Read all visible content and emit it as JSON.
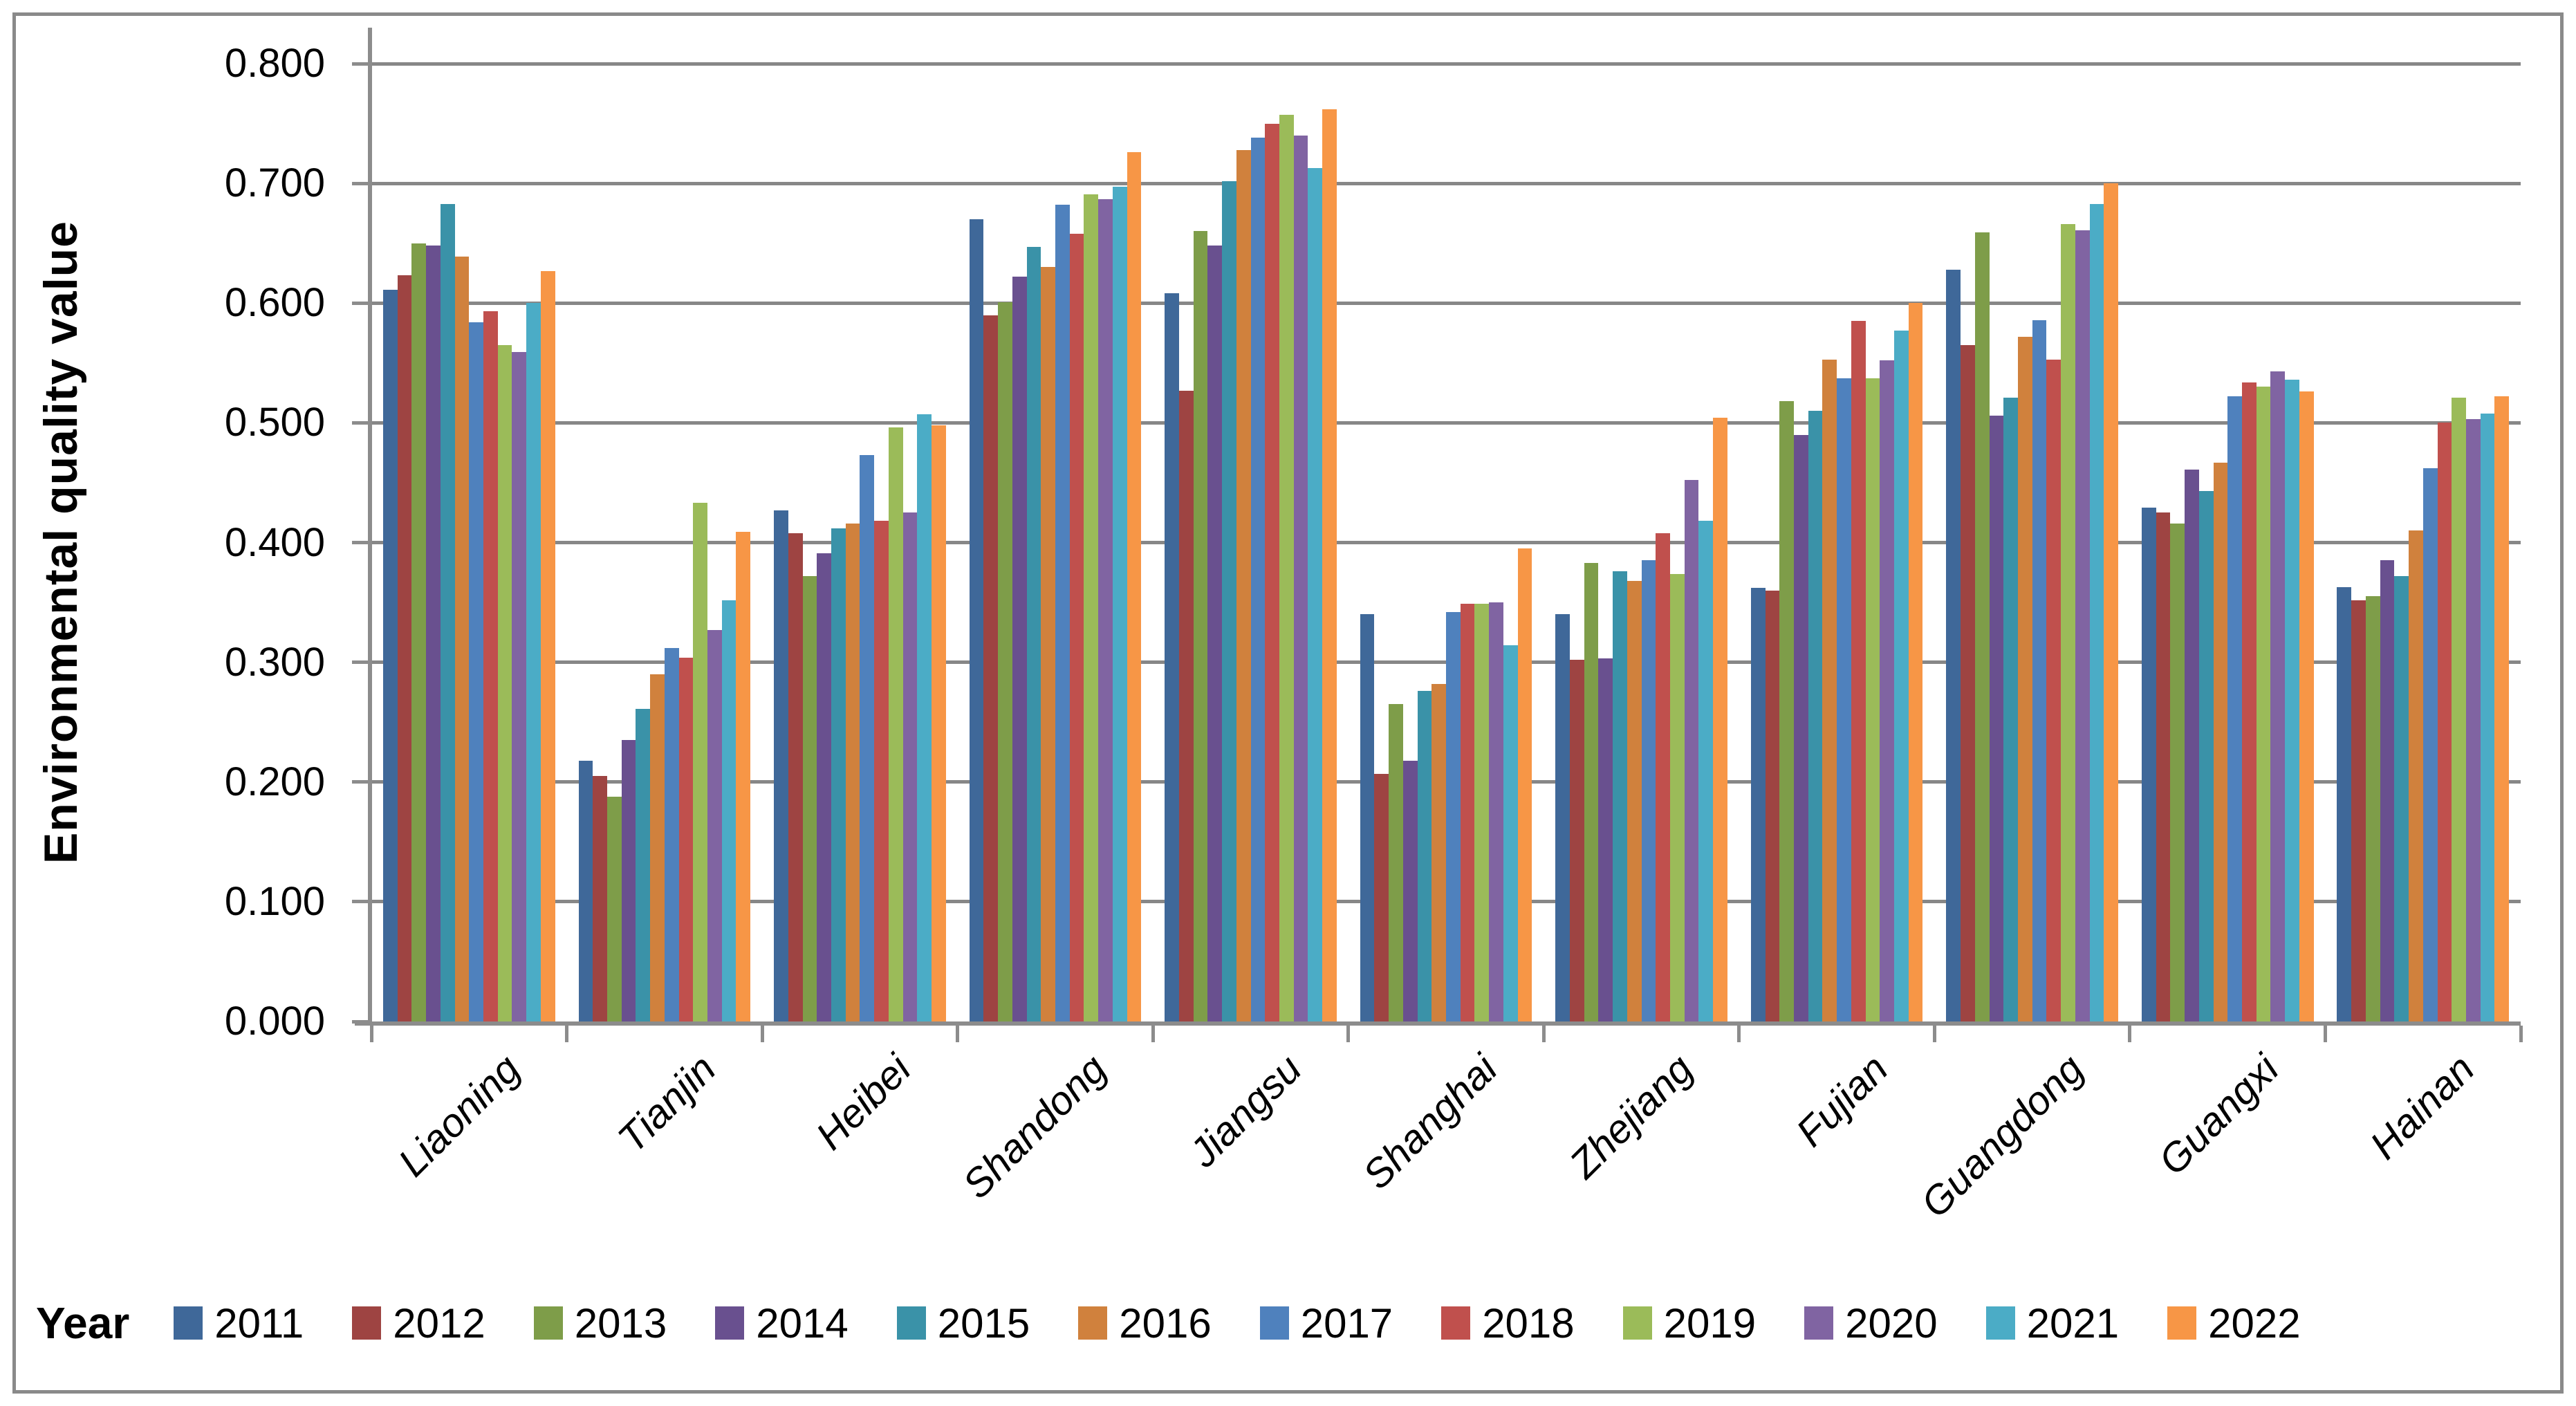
{
  "chart_data": {
    "type": "bar",
    "title": "",
    "ylabel": "Environmental quality value",
    "xlabel": "",
    "legend_title": "Year",
    "legend_position": "bottom",
    "grid": true,
    "ylim": [
      0,
      0.8
    ],
    "y_tick_step": 0.1,
    "y_tick_labels": [
      "0.800",
      "0.700",
      "0.600",
      "0.500",
      "0.400",
      "0.300",
      "0.200",
      "0.100",
      "0.000"
    ],
    "categories": [
      "Liaoning",
      "Tianjin",
      "Heibei",
      "Shandong",
      "Jiangsu",
      "Shanghai",
      "Zhejiang",
      "Fujian",
      "Guangdong",
      "Guangxi",
      "Hainan"
    ],
    "series": [
      {
        "name": "2011",
        "color": "#3F6899",
        "values": [
          0.611,
          0.218,
          0.427,
          0.67,
          0.608,
          0.34,
          0.34,
          0.362,
          0.628,
          0.429,
          0.363
        ]
      },
      {
        "name": "2012",
        "color": "#9E4442",
        "values": [
          0.623,
          0.205,
          0.408,
          0.59,
          0.527,
          0.207,
          0.302,
          0.36,
          0.565,
          0.425,
          0.352
        ]
      },
      {
        "name": "2013",
        "color": "#7E9D49",
        "values": [
          0.65,
          0.188,
          0.372,
          0.601,
          0.66,
          0.265,
          0.383,
          0.518,
          0.659,
          0.416,
          0.355
        ]
      },
      {
        "name": "2014",
        "color": "#69508F",
        "values": [
          0.648,
          0.235,
          0.391,
          0.622,
          0.648,
          0.218,
          0.303,
          0.49,
          0.506,
          0.461,
          0.385
        ]
      },
      {
        "name": "2015",
        "color": "#3A92A8",
        "values": [
          0.683,
          0.261,
          0.412,
          0.647,
          0.702,
          0.276,
          0.376,
          0.51,
          0.521,
          0.443,
          0.372
        ]
      },
      {
        "name": "2016",
        "color": "#D0813D",
        "values": [
          0.639,
          0.29,
          0.416,
          0.63,
          0.728,
          0.282,
          0.368,
          0.553,
          0.572,
          0.467,
          0.41
        ]
      },
      {
        "name": "2017",
        "color": "#4F81BD",
        "values": [
          0.584,
          0.312,
          0.473,
          0.682,
          0.738,
          0.342,
          0.385,
          0.537,
          0.586,
          0.522,
          0.462
        ]
      },
      {
        "name": "2018",
        "color": "#C0504D",
        "values": [
          0.593,
          0.304,
          0.418,
          0.658,
          0.75,
          0.349,
          0.408,
          0.585,
          0.553,
          0.534,
          0.5
        ]
      },
      {
        "name": "2019",
        "color": "#9BBB59",
        "values": [
          0.565,
          0.433,
          0.496,
          0.691,
          0.757,
          0.349,
          0.374,
          0.537,
          0.666,
          0.53,
          0.521
        ]
      },
      {
        "name": "2020",
        "color": "#8064A2",
        "values": [
          0.559,
          0.327,
          0.425,
          0.687,
          0.74,
          0.35,
          0.452,
          0.552,
          0.661,
          0.543,
          0.503
        ]
      },
      {
        "name": "2021",
        "color": "#4BACC6",
        "values": [
          0.6,
          0.352,
          0.507,
          0.697,
          0.713,
          0.314,
          0.418,
          0.577,
          0.683,
          0.536,
          0.508
        ]
      },
      {
        "name": "2022",
        "color": "#F79646",
        "values": [
          0.627,
          0.409,
          0.498,
          0.726,
          0.762,
          0.395,
          0.504,
          0.6,
          0.7,
          0.526,
          0.522
        ]
      }
    ],
    "colors": {
      "gridline": "#878787",
      "axis": "#8C8C8C",
      "frame_border": "#8A8A8A",
      "text": "#000000"
    }
  }
}
